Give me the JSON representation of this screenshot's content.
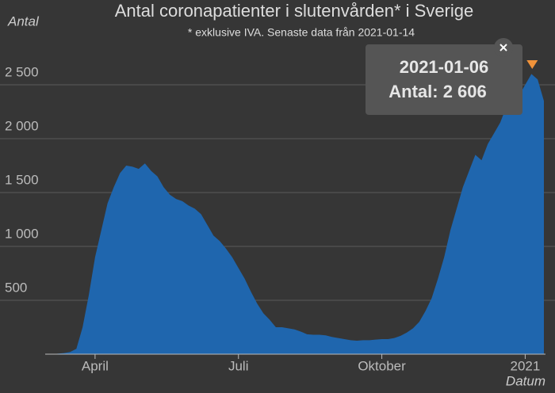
{
  "chart_data": {
    "type": "area",
    "title": "Antal coronapatienter i slutenvården* i Sverige",
    "subtitle": "* exklusive IVA. Senaste data från 2021-01-14",
    "y_label": "Antal",
    "x_label": "Datum",
    "color": "#1f66ae",
    "categories": [
      null,
      null,
      null,
      null,
      null,
      null,
      null,
      null,
      "April",
      null,
      null,
      null,
      null,
      null,
      null,
      null,
      null,
      null,
      null,
      null,
      null,
      null,
      null,
      null,
      null,
      null,
      null,
      null,
      null,
      null,
      null,
      "Juli",
      null,
      null,
      null,
      null,
      null,
      null,
      null,
      null,
      null,
      null,
      null,
      null,
      null,
      null,
      null,
      null,
      null,
      null,
      null,
      null,
      null,
      null,
      "Oktober",
      null,
      null,
      null,
      null,
      null,
      null,
      null,
      null,
      null,
      null,
      null,
      null,
      null,
      null,
      null,
      null,
      null,
      null,
      null,
      null,
      null,
      null,
      "2021",
      null,
      null,
      null
    ],
    "values": [
      0,
      0,
      5,
      10,
      20,
      50,
      250,
      550,
      900,
      1150,
      1400,
      1550,
      1680,
      1750,
      1740,
      1720,
      1770,
      1700,
      1650,
      1550,
      1480,
      1440,
      1420,
      1380,
      1350,
      1300,
      1200,
      1100,
      1050,
      980,
      900,
      800,
      700,
      580,
      470,
      380,
      320,
      250,
      250,
      240,
      230,
      210,
      185,
      180,
      180,
      175,
      160,
      150,
      140,
      130,
      125,
      130,
      130,
      135,
      140,
      140,
      150,
      170,
      200,
      240,
      300,
      400,
      520,
      700,
      900,
      1150,
      1350,
      1550,
      1700,
      1850,
      1800,
      1950,
      2050,
      2150,
      2300,
      2350,
      2400,
      2500,
      2600,
      2550,
      2350
    ],
    "ylim": [
      0,
      3000
    ],
    "yticks": [
      500,
      {
        "value": 1000,
        "label": "1 000"
      },
      {
        "value": 1500,
        "label": "1 500"
      },
      {
        "value": 2000,
        "label": "2 000"
      },
      {
        "value": 2500,
        "label": "2 500"
      }
    ],
    "grid": true,
    "tooltip": {
      "date": "2021-01-06",
      "text": "Antal: 2 606"
    }
  }
}
